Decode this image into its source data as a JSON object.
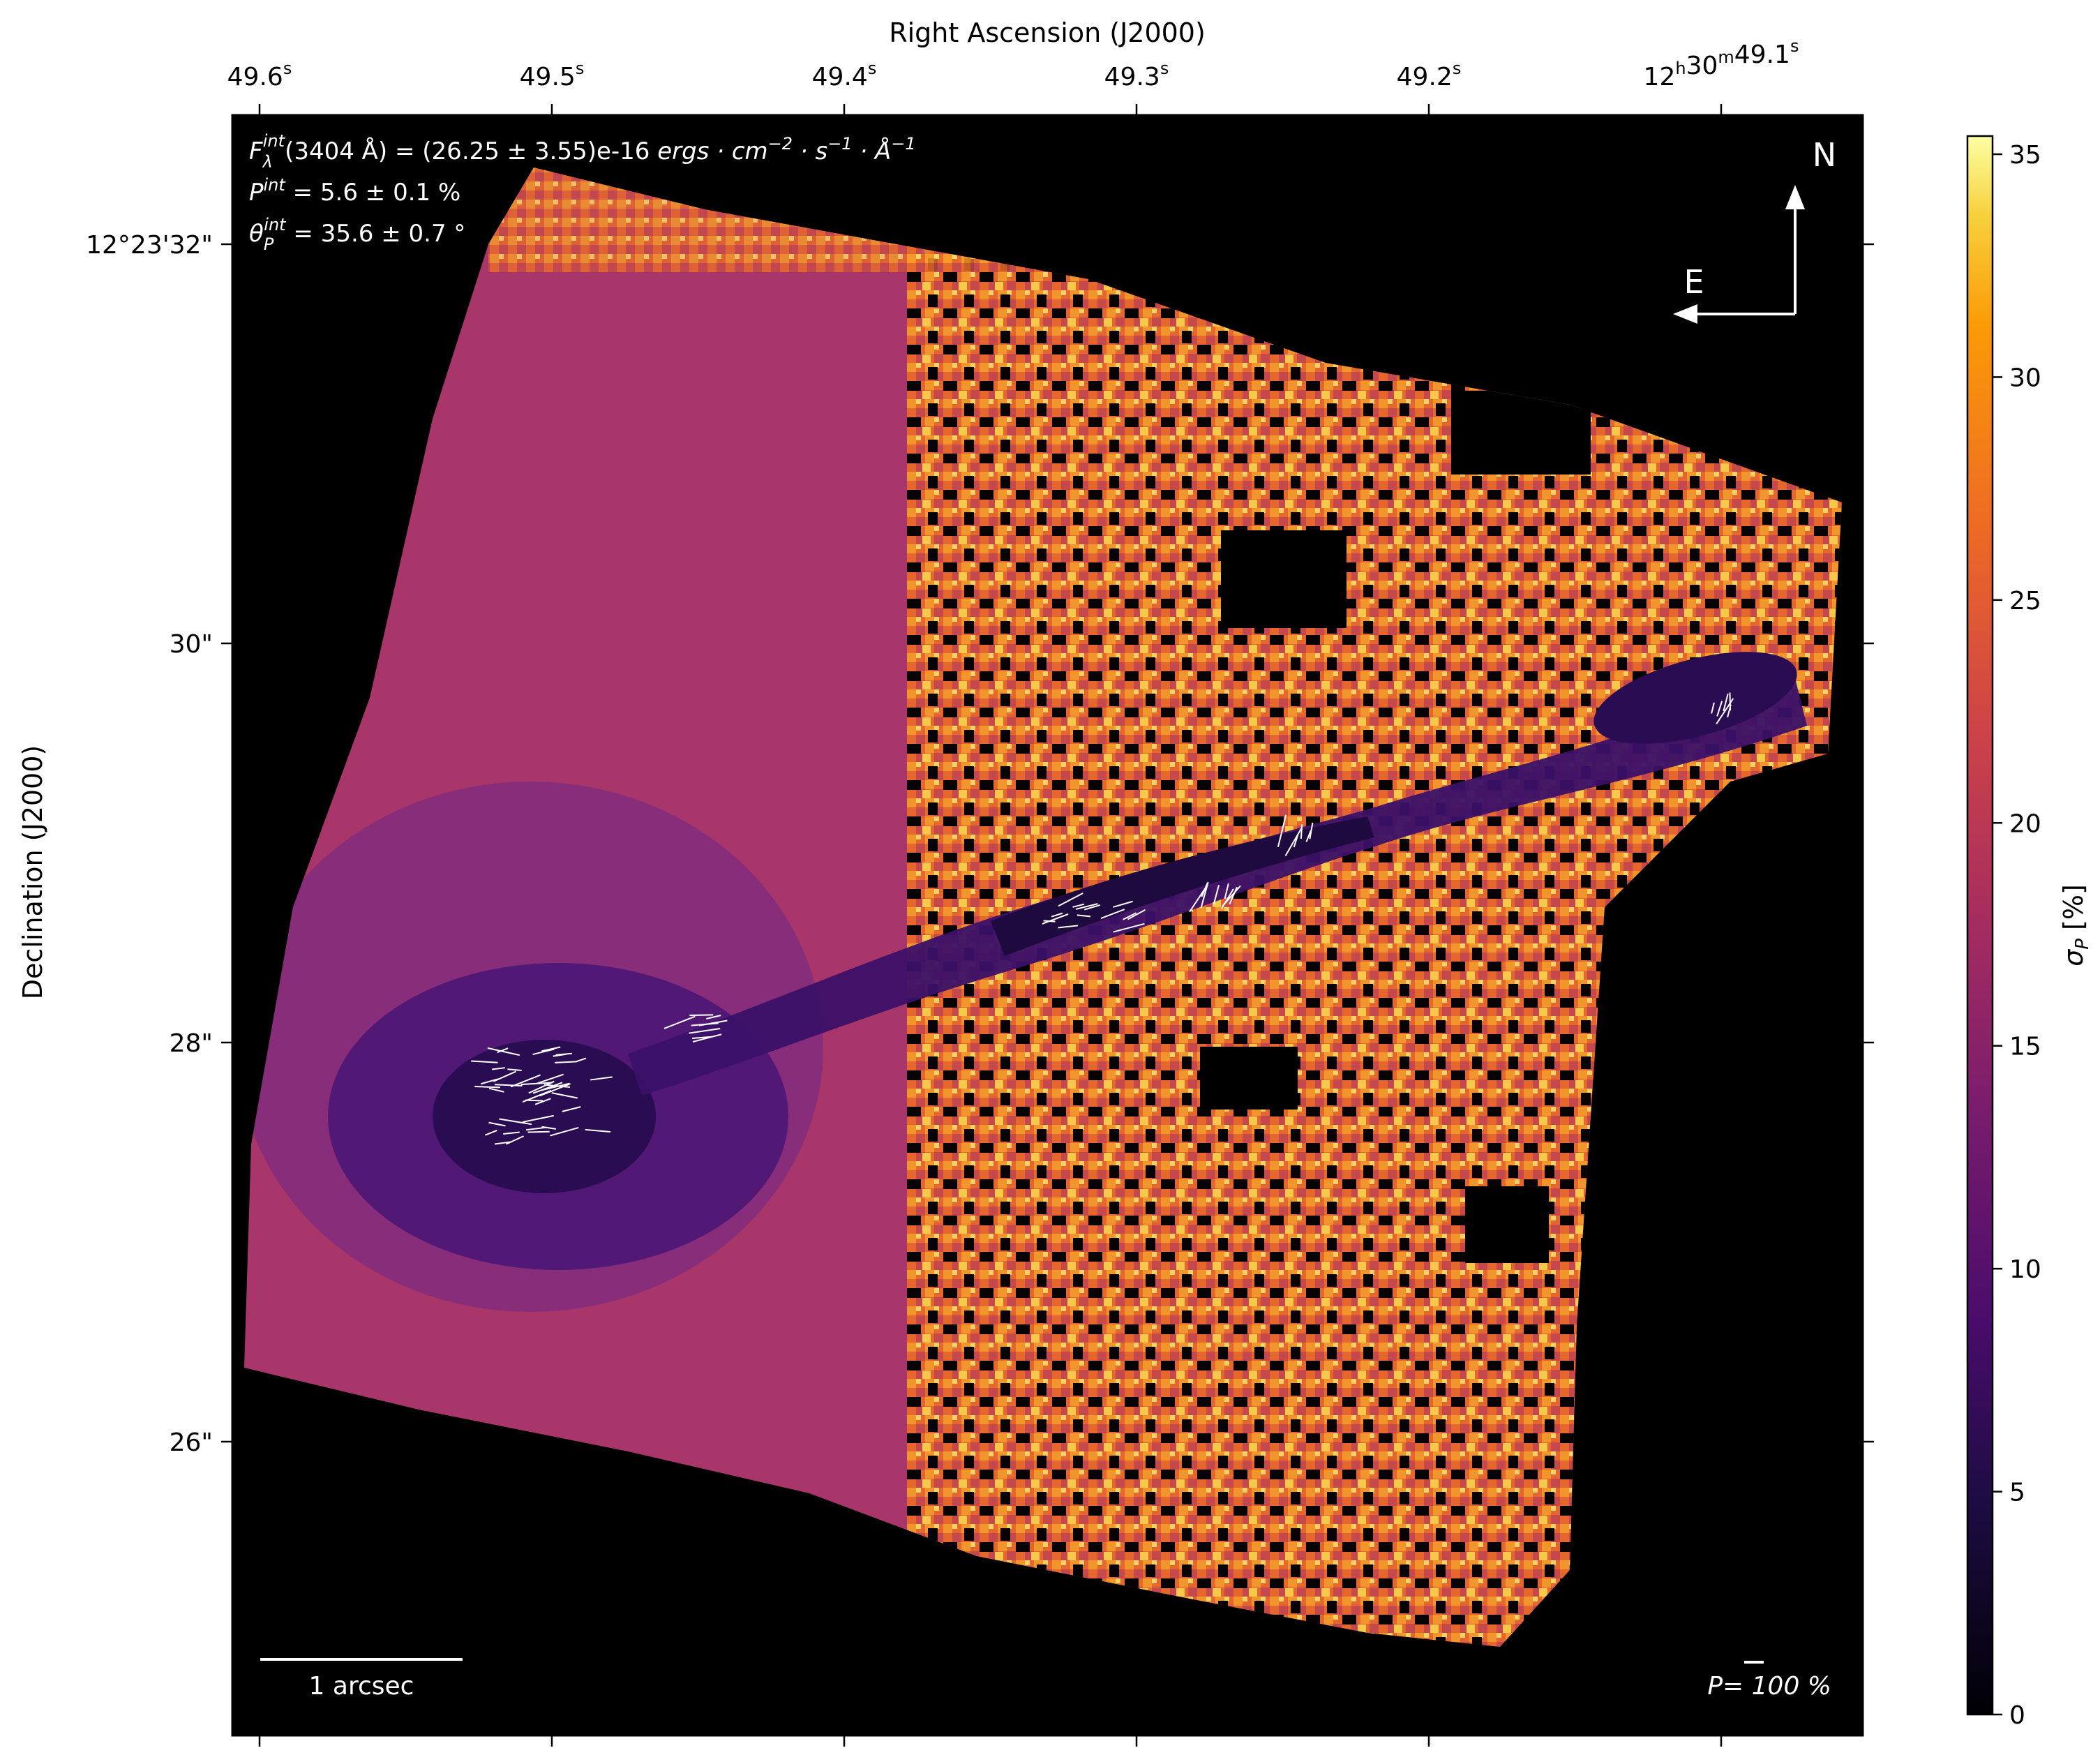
{
  "chart_data": {
    "type": "heatmap",
    "title": "",
    "xlabel": "Right Ascension (J2000)",
    "ylabel": "Declination (J2000)",
    "x_ticks": [
      {
        "main": "49.6",
        "sup": "s"
      },
      {
        "main": "49.5",
        "sup": "s"
      },
      {
        "main": "49.4",
        "sup": "s"
      },
      {
        "main": "49.3",
        "sup": "s"
      },
      {
        "main": "49.2",
        "sup": "s"
      },
      {
        "main": "12",
        "sup": "h",
        "main2": "30",
        "sup2": "m",
        "main3": "49.1",
        "sup3": "s"
      }
    ],
    "y_ticks": [
      "12°23'32\"",
      "30\"",
      "28\"",
      "26\""
    ],
    "colorbar": {
      "label": "σ_P [%]",
      "label_main": "σ",
      "label_sub": "P",
      "label_rest": " [%]",
      "range": [
        0,
        35
      ],
      "ticks": [
        "0",
        "5",
        "10",
        "15",
        "20",
        "25",
        "30",
        "35"
      ],
      "colormap": "inferno"
    },
    "annotations": {
      "flux": "F_λ^int(3404 Å) = (26.25 ± 3.55)e-16 ergs·cm⁻²·s⁻¹·Å⁻¹",
      "flux_pre": "F",
      "flux_sub": "λ",
      "flux_sup": "int",
      "flux_mid": "(3404 Å) = (26.25 ± 3.55)e-16 ",
      "flux_units": "ergs · cm",
      "flux_exp1": "−2",
      "flux_u2": " · s",
      "flux_exp2": "−1",
      "flux_u3": " · Å",
      "flux_exp3": "−1",
      "pol": "P^int = 5.6 ± 0.1 %",
      "pol_pre": "P",
      "pol_sup": "int",
      "pol_rest": " = 5.6 ± 0.1 %",
      "angle": "θ_P^int = 35.6 ± 0.7 °",
      "angle_pre": "θ",
      "angle_sub": "P",
      "angle_sup": "int",
      "angle_rest": " = 35.6 ± 0.7 °",
      "north": "N",
      "east": "E",
      "scale_bar": "1 arcsec",
      "vector_scale": "P= 100 %"
    }
  }
}
